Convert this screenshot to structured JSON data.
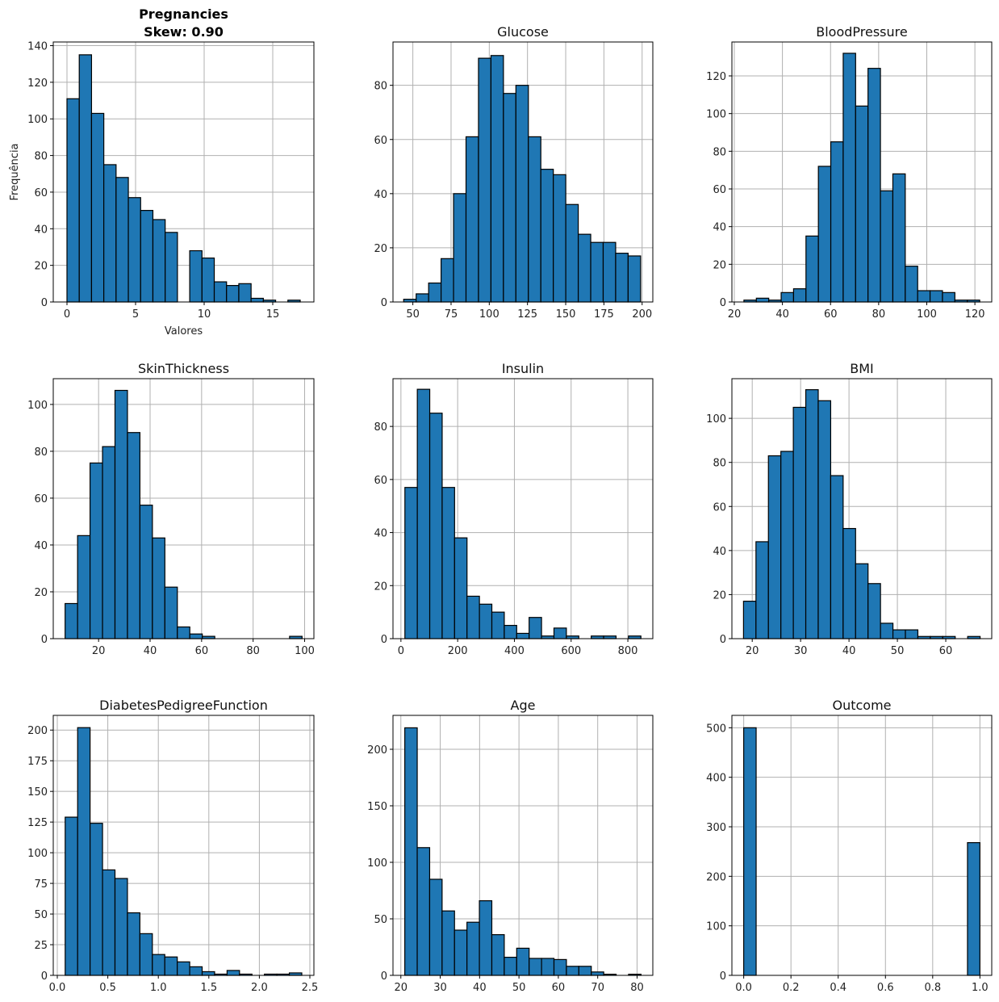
{
  "figure": {
    "bar_color": "#1f77b4",
    "edge_color": "#000000",
    "grid_color": "#b0b0b0"
  },
  "chart_data": [
    {
      "type": "bar",
      "title": "Pregnancies",
      "subtitle": "Skew: 0.90",
      "title_bold": true,
      "xlabel": "Valores",
      "ylabel": "Frequência",
      "grid": true,
      "bin_range": [
        0,
        17
      ],
      "values": [
        111,
        135,
        103,
        75,
        68,
        57,
        50,
        45,
        38,
        0,
        28,
        24,
        11,
        9,
        10,
        2,
        1,
        0,
        1
      ],
      "xlim": [
        -1,
        18
      ],
      "ylim": [
        0,
        142
      ],
      "xticks": [
        0,
        5,
        10,
        15
      ],
      "xtick_labels": [
        "0",
        "5",
        "10",
        "15"
      ],
      "yticks": [
        0,
        20,
        40,
        60,
        80,
        100,
        120,
        140
      ],
      "ytick_labels": [
        "0",
        "20",
        "40",
        "60",
        "80",
        "100",
        "120",
        "140"
      ]
    },
    {
      "type": "bar",
      "title": "Glucose",
      "xlabel": "",
      "ylabel": "",
      "grid": true,
      "bin_range": [
        44,
        199
      ],
      "values": [
        1,
        3,
        7,
        16,
        40,
        61,
        90,
        91,
        77,
        80,
        61,
        49,
        47,
        36,
        25,
        22,
        22,
        18,
        17
      ],
      "xlim": [
        37,
        207
      ],
      "ylim": [
        0,
        96
      ],
      "xticks": [
        50,
        75,
        100,
        125,
        150,
        175,
        200
      ],
      "xtick_labels": [
        "50",
        "75",
        "100",
        "125",
        "150",
        "175",
        "200"
      ],
      "yticks": [
        0,
        20,
        40,
        60,
        80
      ],
      "ytick_labels": [
        "0",
        "20",
        "40",
        "60",
        "80"
      ]
    },
    {
      "type": "bar",
      "title": "BloodPressure",
      "xlabel": "",
      "ylabel": "",
      "grid": true,
      "bin_range": [
        24,
        122
      ],
      "values": [
        1,
        2,
        1,
        5,
        7,
        35,
        72,
        85,
        132,
        104,
        124,
        59,
        68,
        19,
        6,
        6,
        5,
        1,
        1
      ],
      "xlim": [
        19,
        127
      ],
      "ylim": [
        0,
        138
      ],
      "xticks": [
        20,
        40,
        60,
        80,
        100,
        120
      ],
      "xtick_labels": [
        "20",
        "40",
        "60",
        "80",
        "100",
        "120"
      ],
      "yticks": [
        0,
        20,
        40,
        60,
        80,
        100,
        120
      ],
      "ytick_labels": [
        "0",
        "20",
        "40",
        "60",
        "80",
        "100",
        "120"
      ]
    },
    {
      "type": "bar",
      "title": "SkinThickness",
      "xlabel": "",
      "ylabel": "",
      "grid": true,
      "bin_range": [
        7,
        99
      ],
      "values": [
        15,
        44,
        75,
        82,
        106,
        88,
        57,
        43,
        22,
        5,
        2,
        1,
        0,
        0,
        0,
        0,
        0,
        0,
        1
      ],
      "xlim": [
        2.4,
        103.6
      ],
      "ylim": [
        0,
        111
      ],
      "xticks": [
        20,
        40,
        60,
        80,
        100
      ],
      "xtick_labels": [
        "20",
        "40",
        "60",
        "80",
        "100"
      ],
      "yticks": [
        0,
        20,
        40,
        60,
        80,
        100
      ],
      "ytick_labels": [
        "0",
        "20",
        "40",
        "60",
        "80",
        "100"
      ]
    },
    {
      "type": "bar",
      "title": "Insulin",
      "xlabel": "",
      "ylabel": "",
      "grid": true,
      "bin_range": [
        14,
        846
      ],
      "values": [
        57,
        94,
        85,
        57,
        38,
        16,
        13,
        10,
        5,
        2,
        8,
        1,
        4,
        1,
        0,
        1,
        1,
        0,
        1
      ],
      "xlim": [
        -28,
        888
      ],
      "ylim": [
        0,
        98
      ],
      "xticks": [
        0,
        200,
        400,
        600,
        800
      ],
      "xtick_labels": [
        "0",
        "200",
        "400",
        "600",
        "800"
      ],
      "yticks": [
        0,
        20,
        40,
        60,
        80
      ],
      "ytick_labels": [
        "0",
        "20",
        "40",
        "60",
        "80"
      ]
    },
    {
      "type": "bar",
      "title": "BMI",
      "xlabel": "",
      "ylabel": "",
      "grid": true,
      "bin_range": [
        18.2,
        67.1
      ],
      "values": [
        17,
        44,
        83,
        85,
        105,
        113,
        108,
        74,
        50,
        34,
        25,
        7,
        4,
        4,
        1,
        1,
        1,
        0,
        1
      ],
      "xlim": [
        15.8,
        69.5
      ],
      "ylim": [
        0,
        118
      ],
      "xticks": [
        20,
        30,
        40,
        50,
        60
      ],
      "xtick_labels": [
        "20",
        "30",
        "40",
        "50",
        "60"
      ],
      "yticks": [
        0,
        20,
        40,
        60,
        80,
        100
      ],
      "ytick_labels": [
        "0",
        "20",
        "40",
        "60",
        "80",
        "100"
      ]
    },
    {
      "type": "bar",
      "title": "DiabetesPedigreeFunction",
      "xlabel": "",
      "ylabel": "",
      "grid": true,
      "bin_range": [
        0.078,
        2.42
      ],
      "values": [
        129,
        202,
        124,
        86,
        79,
        51,
        34,
        17,
        15,
        11,
        7,
        3,
        1,
        4,
        1,
        0,
        1,
        1,
        2
      ],
      "xlim": [
        -0.04,
        2.54
      ],
      "ylim": [
        0,
        212
      ],
      "xticks": [
        0.0,
        0.5,
        1.0,
        1.5,
        2.0,
        2.5
      ],
      "xtick_labels": [
        "0.0",
        "0.5",
        "1.0",
        "1.5",
        "2.0",
        "2.5"
      ],
      "yticks": [
        0,
        25,
        50,
        75,
        100,
        125,
        150,
        175,
        200
      ],
      "ytick_labels": [
        "0",
        "25",
        "50",
        "75",
        "100",
        "125",
        "150",
        "175",
        "200"
      ]
    },
    {
      "type": "bar",
      "title": "Age",
      "xlabel": "",
      "ylabel": "",
      "grid": true,
      "bin_range": [
        21,
        81
      ],
      "values": [
        219,
        113,
        85,
        57,
        40,
        47,
        66,
        36,
        16,
        24,
        15,
        15,
        14,
        8,
        8,
        3,
        1,
        0,
        1
      ],
      "xlim": [
        18,
        84
      ],
      "ylim": [
        0,
        230
      ],
      "xticks": [
        20,
        30,
        40,
        50,
        60,
        70,
        80
      ],
      "xtick_labels": [
        "20",
        "30",
        "40",
        "50",
        "60",
        "70",
        "80"
      ],
      "yticks": [
        0,
        50,
        100,
        150,
        200
      ],
      "ytick_labels": [
        "0",
        "50",
        "100",
        "150",
        "200"
      ]
    },
    {
      "type": "bar",
      "title": "Outcome",
      "xlabel": "",
      "ylabel": "",
      "grid": true,
      "bin_range": [
        0,
        1
      ],
      "values": [
        500,
        0,
        0,
        0,
        0,
        0,
        0,
        0,
        0,
        0,
        0,
        0,
        0,
        0,
        0,
        0,
        0,
        0,
        268
      ],
      "xlim": [
        -0.05,
        1.05
      ],
      "ylim": [
        0,
        525
      ],
      "xticks": [
        0.0,
        0.2,
        0.4,
        0.6,
        0.8,
        1.0
      ],
      "xtick_labels": [
        "0.0",
        "0.2",
        "0.4",
        "0.6",
        "0.8",
        "1.0"
      ],
      "yticks": [
        0,
        100,
        200,
        300,
        400,
        500
      ],
      "ytick_labels": [
        "0",
        "100",
        "200",
        "300",
        "400",
        "500"
      ]
    }
  ]
}
